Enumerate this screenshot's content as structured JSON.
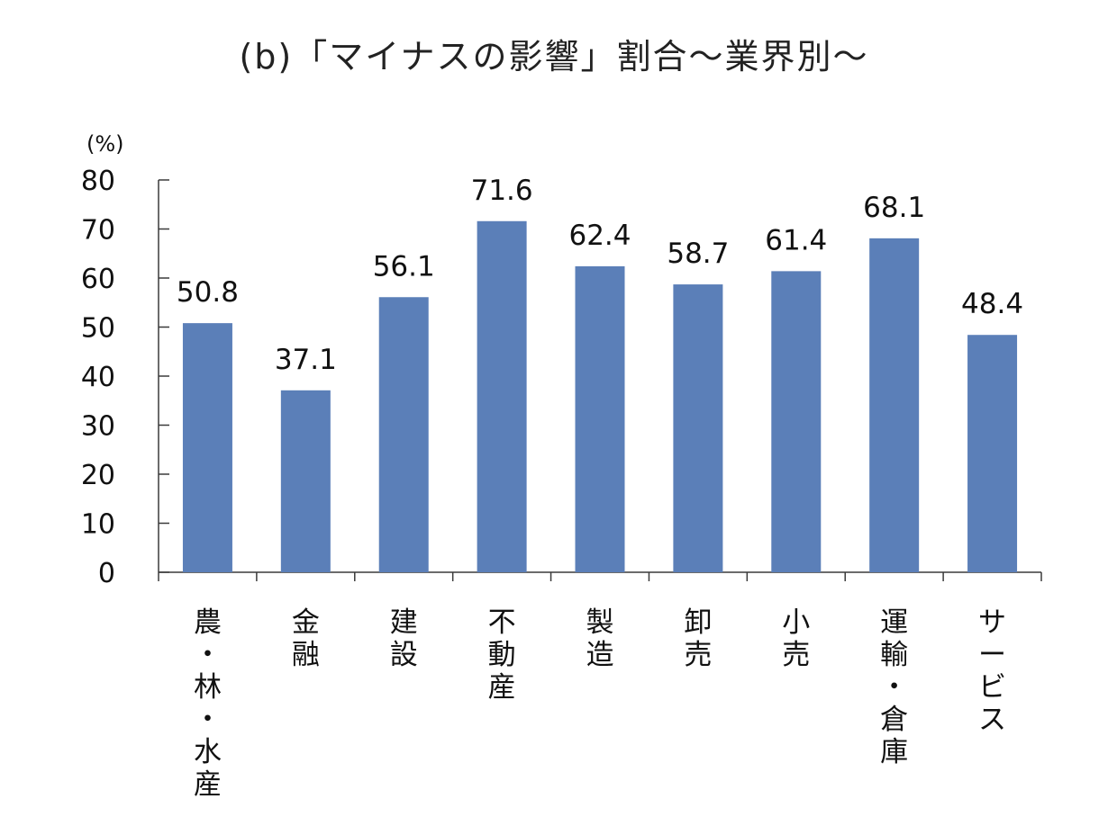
{
  "chart_data": {
    "type": "bar",
    "title": "(b)「マイナスの影響」割合～業界別～",
    "ylabel": "(%)",
    "xlabel": "",
    "ylim": [
      0,
      80
    ],
    "yticks": [
      0,
      10,
      20,
      30,
      40,
      50,
      60,
      70,
      80
    ],
    "grid": false,
    "legend": "none",
    "bar_color": "#5b7fb8",
    "categories": [
      "農・林・水産",
      "金融",
      "建設",
      "不動産",
      "製造",
      "卸売",
      "小売",
      "運輸・倉庫",
      "サービス"
    ],
    "category_lines": [
      [
        "農",
        "・",
        "林",
        "・",
        "水",
        "産"
      ],
      [
        "金",
        "融"
      ],
      [
        "建",
        "設"
      ],
      [
        "不",
        "動",
        "産"
      ],
      [
        "製",
        "造"
      ],
      [
        "卸",
        "売"
      ],
      [
        "小",
        "売"
      ],
      [
        "運",
        "輸",
        "・",
        "倉",
        "庫"
      ],
      [
        "サ",
        "ー",
        "ビ",
        "ス"
      ]
    ],
    "values": [
      50.8,
      37.1,
      56.1,
      71.6,
      62.4,
      58.7,
      61.4,
      68.1,
      48.4
    ],
    "value_labels": [
      "50.8",
      "37.1",
      "56.1",
      "71.6",
      "62.4",
      "58.7",
      "61.4",
      "68.1",
      "48.4"
    ]
  }
}
